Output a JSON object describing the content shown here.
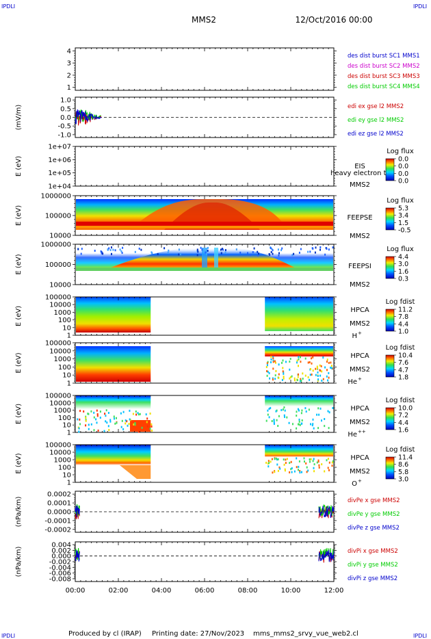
{
  "header": {
    "corner_label": "IPDLI",
    "spacecraft": "MMS2",
    "datetime": "12/Oct/2016 00:00"
  },
  "footer": {
    "produced_by": "Produced by cl (IRAP)",
    "printing_date": "Printing date: 27/Nov/2023",
    "filename": "mms_mms2_srvy_vue_web2.cl"
  },
  "colors": {
    "red": "#cc0000",
    "green": "#00cc00",
    "blue": "#0000cc",
    "magenta": "#cc00cc"
  },
  "chart_data": {
    "x_ticks": [
      "00:00",
      "02:00",
      "04:00",
      "06:00",
      "08:00",
      "10:00",
      "12:00"
    ],
    "x_range_hours": [
      0,
      12
    ],
    "panels": [
      {
        "id": "des",
        "type": "line",
        "ylabel": "",
        "yticks": [
          "4",
          "3",
          "2",
          "1"
        ],
        "ylim": [
          0.5,
          4.5
        ],
        "legend": [
          {
            "text": "des dist burst SC1 MMS1",
            "color": "#0000cc"
          },
          {
            "text": "des dist burst SC2 MMS2",
            "color": "#cc00cc"
          },
          {
            "text": "des dist burst SC3 MMS3",
            "color": "#cc0000"
          },
          {
            "text": "des dist burst SC4 MMS4",
            "color": "#00cc00"
          }
        ]
      },
      {
        "id": "edi",
        "type": "line",
        "ylabel": "(mV/m)",
        "yticks": [
          "1.0",
          "0.5",
          "0.0",
          "-0.5",
          "-1.0"
        ],
        "ylim": [
          -1.0,
          1.0
        ],
        "zero_line": true,
        "data_x_range_hours": [
          0,
          1.2
        ],
        "legend": [
          {
            "text": "edi ex gse l2 MMS2",
            "color": "#cc0000"
          },
          {
            "text": "edi ey gse l2 MMS2",
            "color": "#00cc00"
          },
          {
            "text": "edi ez gse l2 MMS2",
            "color": "#0000cc"
          }
        ]
      },
      {
        "id": "eis",
        "type": "heatmap",
        "ylabel": "E (eV)",
        "yticks": [
          "1e+07",
          "1e+06",
          "1e+05",
          "1e+04"
        ],
        "ylim": [
          10000,
          10000000
        ],
        "log_y": true,
        "label_lines": [
          "EIS",
          "MMS2"
        ],
        "overlay_text": "heavy electron to",
        "colorbar": {
          "title": "Log flux",
          "ticks": [
            "0.0",
            "0.0",
            "0.0",
            "0.0"
          ]
        }
      },
      {
        "id": "feepse",
        "type": "heatmap",
        "ylabel": "E (eV)",
        "yticks": [
          "1000000",
          "100000",
          "10000"
        ],
        "ylim": [
          10000,
          1000000
        ],
        "log_y": true,
        "label_lines": [
          "FEEPSE",
          "MMS2"
        ],
        "colorbar": {
          "title": "Log flux",
          "ticks": [
            "5.3",
            "3.4",
            "1.5",
            "-0.5"
          ]
        }
      },
      {
        "id": "feepsi",
        "type": "heatmap",
        "ylabel": "E (eV)",
        "yticks": [
          "1000000",
          "100000",
          "10000"
        ],
        "ylim": [
          10000,
          1000000
        ],
        "log_y": true,
        "label_lines": [
          "FEEPSI",
          "MMS2"
        ],
        "colorbar": {
          "title": "Log flux",
          "ticks": [
            "4.4",
            "3.0",
            "1.6",
            "0.3"
          ]
        }
      },
      {
        "id": "hpca_h",
        "type": "heatmap",
        "ylabel": "E (eV)",
        "yticks": [
          "100000",
          "10000",
          "1000",
          "100",
          "10",
          "1"
        ],
        "ylim": [
          1,
          100000
        ],
        "log_y": true,
        "data_gap_hours": [
          3.5,
          8.8
        ],
        "label_lines": [
          "HPCA",
          "MMS2"
        ],
        "species": "H",
        "species_charge": "+",
        "colorbar": {
          "title": "Log fdist",
          "ticks": [
            "11.2",
            "7.8",
            "4.4",
            "1.0"
          ]
        }
      },
      {
        "id": "hpca_he",
        "type": "heatmap",
        "ylabel": "E (eV)",
        "yticks": [
          "100000",
          "10000",
          "1000",
          "100",
          "10",
          "1"
        ],
        "ylim": [
          1,
          100000
        ],
        "log_y": true,
        "data_gap_hours": [
          3.5,
          8.8
        ],
        "label_lines": [
          "HPCA",
          "MMS2"
        ],
        "species": "He",
        "species_charge": "+",
        "colorbar": {
          "title": "Log fdist",
          "ticks": [
            "10.4",
            "7.6",
            "4.7",
            "1.8"
          ]
        }
      },
      {
        "id": "hpca_he2",
        "type": "heatmap",
        "ylabel": "E (eV)",
        "yticks": [
          "100000",
          "10000",
          "1000",
          "100",
          "10",
          "1"
        ],
        "ylim": [
          1,
          100000
        ],
        "log_y": true,
        "data_gap_hours": [
          3.5,
          8.8
        ],
        "label_lines": [
          "HPCA",
          "MMS2"
        ],
        "species": "He",
        "species_charge": "++",
        "colorbar": {
          "title": "Log fdist",
          "ticks": [
            "10.0",
            "7.2",
            "4.4",
            "1.6"
          ]
        }
      },
      {
        "id": "hpca_o",
        "type": "heatmap",
        "ylabel": "E (eV)",
        "yticks": [
          "100000",
          "10000",
          "1000",
          "100",
          "10",
          "1"
        ],
        "ylim": [
          1,
          100000
        ],
        "log_y": true,
        "data_gap_hours": [
          3.5,
          8.8
        ],
        "label_lines": [
          "HPCA",
          "MMS2"
        ],
        "species": "O",
        "species_charge": "+",
        "colorbar": {
          "title": "Log fdist",
          "ticks": [
            "11.4",
            "8.6",
            "5.8",
            "3.0"
          ]
        }
      },
      {
        "id": "divpe",
        "type": "line",
        "ylabel": "(nPa/km)",
        "yticks": [
          "0.0002",
          "0.0001",
          "0.0000",
          "-0.0001",
          "-0.0002"
        ],
        "ylim": [
          -0.0002,
          0.0002
        ],
        "zero_line": true,
        "data_x_ranges_hours": [
          [
            0,
            0.2
          ],
          [
            11.3,
            12
          ]
        ],
        "legend": [
          {
            "text": "divPe x gse MMS2",
            "color": "#cc0000"
          },
          {
            "text": "divPe y gse MMS2",
            "color": "#00cc00"
          },
          {
            "text": "divPe z gse MMS2",
            "color": "#0000cc"
          }
        ]
      },
      {
        "id": "divpi",
        "type": "line",
        "ylabel": "(nPa/km)",
        "yticks": [
          "0.004",
          "0.002",
          "0.000",
          "-0.002",
          "-0.004",
          "-0.006",
          "-0.008"
        ],
        "ylim": [
          -0.008,
          0.004
        ],
        "zero_line": true,
        "data_x_ranges_hours": [
          [
            0,
            0.2
          ],
          [
            11.3,
            12
          ]
        ],
        "legend": [
          {
            "text": "divPi x gse MMS2",
            "color": "#cc0000"
          },
          {
            "text": "divPi y gse MMS2",
            "color": "#00cc00"
          },
          {
            "text": "divPi z gse MMS2",
            "color": "#0000cc"
          }
        ]
      }
    ]
  }
}
